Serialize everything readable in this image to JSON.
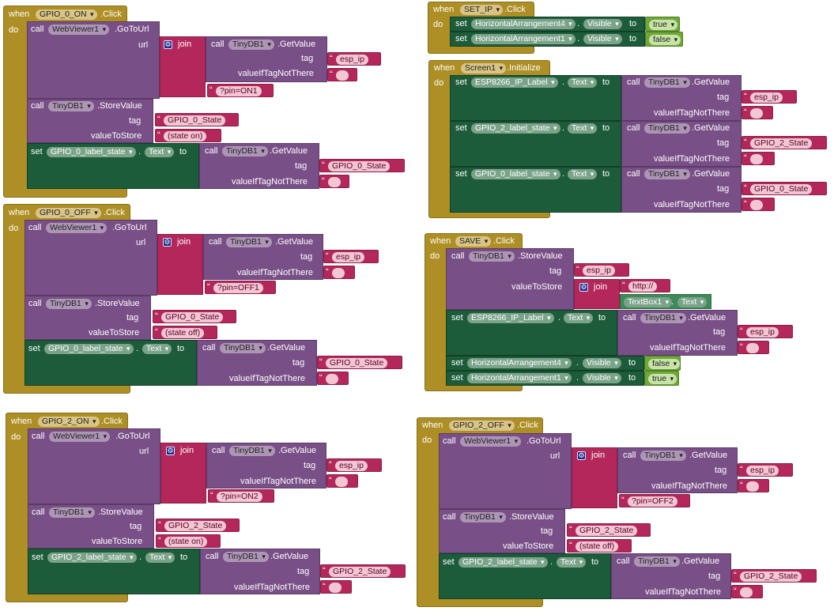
{
  "labels": {
    "when": "when",
    "do": "do",
    "call": "call",
    "set": "set",
    "to": "to",
    "join": "join",
    "click": ".Click",
    "initialize": ".Initialize",
    "goto": ".GoToUrl",
    "getvalue": ".GetValue",
    "storevalue": ".StoreValue",
    "url": "url",
    "tag": "tag",
    "valueIfTagNotThere": "valueIfTagNotThere",
    "valueToStore": "valueToStore",
    "text_prop": "Text",
    "visible_prop": "Visible",
    "dot": ".",
    "gear": "⚙"
  },
  "components": {
    "webviewer": "WebViewer1",
    "tinydb": "TinyDB1",
    "textbox": "TextBox1",
    "ha4": "HorizontalArrangement4",
    "ha1": "HorizontalArrangement1",
    "esp_label": "ESP8266_IP_Label",
    "gpio0_label": "GPIO_0_label_state",
    "gpio2_label": "GPIO_2_label_state",
    "gpio0_on": "GPIO_0_ON",
    "gpio0_off": "GPIO_0_OFF",
    "gpio2_on": "GPIO_2_ON",
    "gpio2_off": "GPIO_2_OFF",
    "set_ip": "SET_IP",
    "screen1": "Screen1",
    "save": "SAVE"
  },
  "strings": {
    "esp_ip": "esp_ip",
    "empty": "",
    "pin_on1": "?pin=ON1",
    "pin_off1": "?pin=OFF1",
    "pin_on2": "?pin=ON2",
    "pin_off2": "?pin=OFF2",
    "gpio0_state": "GPIO_0_State",
    "gpio2_state": "GPIO_2_State",
    "state_on": "(state on)",
    "state_off": "(state off)",
    "http": "http://"
  },
  "booleans": {
    "true": "true",
    "false": "false"
  }
}
